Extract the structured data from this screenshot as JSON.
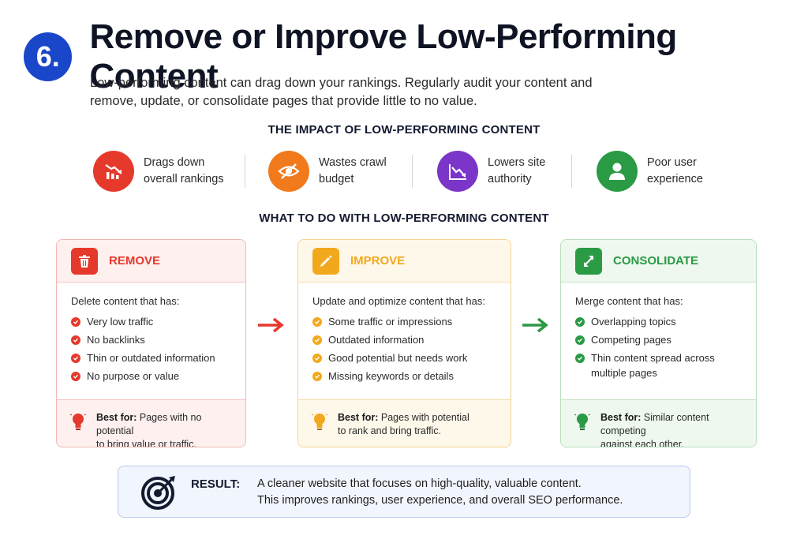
{
  "header": {
    "number": "6.",
    "title": "Remove or Improve Low-Performing Content"
  },
  "intro": {
    "line1": "Low-performing content can drag down your rankings. Regularly audit your content and",
    "line2": "remove, update, or consolidate pages that provide little to no value."
  },
  "impact_section": {
    "heading": "THE IMPACT OF LOW-PERFORMING CONTENT",
    "items": [
      {
        "line1": "Drags down",
        "line2": "overall rankings",
        "icon": "declining-chart-icon",
        "color": "#e5392c"
      },
      {
        "line1": "Wastes crawl",
        "line2": "budget",
        "icon": "eye-slash-icon",
        "color": "#f17a1c"
      },
      {
        "line1": "Lowers site",
        "line2": "authority",
        "icon": "downtrend-icon",
        "color": "#7b35c9"
      },
      {
        "line1": "Poor user",
        "line2": "experience",
        "icon": "user-icon",
        "color": "#2a9a45"
      }
    ]
  },
  "actions_section": {
    "heading": "WHAT TO DO WITH LOW-PERFORMING CONTENT",
    "cards": [
      {
        "title": "REMOVE",
        "icon": "trash-icon",
        "color": "#e5392c",
        "lead": "Delete content that has:",
        "items": [
          "Very low traffic",
          "No backlinks",
          "Thin or outdated information",
          "No purpose or value"
        ],
        "best_label": "Best for:",
        "best_line1": "Pages with no potential",
        "best_line2": "to bring value or traffic."
      },
      {
        "title": "IMPROVE",
        "icon": "pencil-icon",
        "color": "#f2a81d",
        "lead": "Update and optimize content that has:",
        "items": [
          "Some traffic or impressions",
          "Outdated information",
          "Good potential but needs work",
          "Missing keywords or details"
        ],
        "best_label": "Best for:",
        "best_line1": "Pages with potential",
        "best_line2": "to rank and bring traffic."
      },
      {
        "title": "CONSOLIDATE",
        "icon": "merge-arrows-icon",
        "color": "#2a9a45",
        "lead": "Merge content that has:",
        "items": [
          "Overlapping topics",
          "Competing pages",
          "Thin content spread across",
          "multiple pages"
        ],
        "best_label": "Best for:",
        "best_line1": "Similar content competing",
        "best_line2": "against each other."
      }
    ]
  },
  "result": {
    "label": "RESULT:",
    "line1": "A cleaner website that focuses on high-quality, valuable content.",
    "line2": "This improves rankings, user experience, and overall SEO performance."
  }
}
